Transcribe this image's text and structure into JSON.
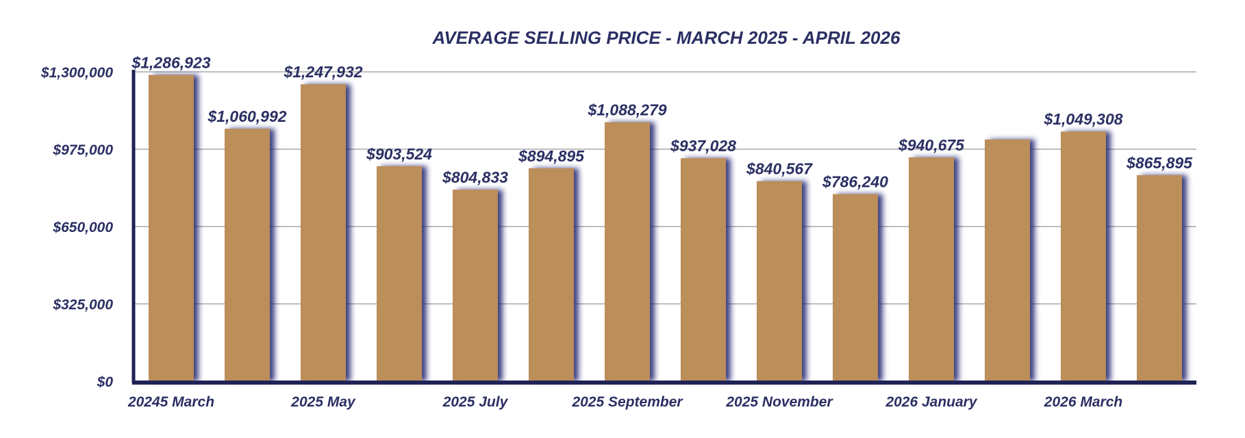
{
  "chart_data": {
    "type": "bar",
    "title": "AVERAGE SELLING PRICE - MARCH 2025 - APRIL 2026",
    "xlabel": "",
    "ylabel": "",
    "categories": [
      "20245 March",
      "",
      "2025 May",
      "",
      "2025 July",
      "",
      "2025 September",
      "",
      "2025 November",
      "",
      "2026 January",
      "",
      "2026 March",
      ""
    ],
    "values": [
      1286923,
      1060992,
      1247932,
      903524,
      804833,
      894895,
      1088279,
      937028,
      840567,
      786240,
      940675,
      1016000,
      1049308,
      865895
    ],
    "data_labels": [
      "$1,286,923",
      "$1,060,992",
      "$1,247,932",
      "$903,524",
      "$804,833",
      "$894,895",
      "$1,088,279",
      "$937,028",
      "$840,567",
      "$786,240",
      "$940,675",
      "",
      "$1,049,308",
      "$865,895"
    ],
    "ylim": [
      0,
      1300000
    ],
    "yticks": [
      0,
      325000,
      650000,
      975000,
      1300000
    ],
    "ytick_labels": [
      "$0",
      "$325,000",
      "$650,000",
      "$975,000",
      "$1,300,000"
    ],
    "grid": true,
    "colors": {
      "bar": "#BC8E5A",
      "text": "#2B2F63",
      "axis": "#1F2356",
      "grid": "#A8A8A8",
      "shadow": "#1C1F6E"
    }
  }
}
